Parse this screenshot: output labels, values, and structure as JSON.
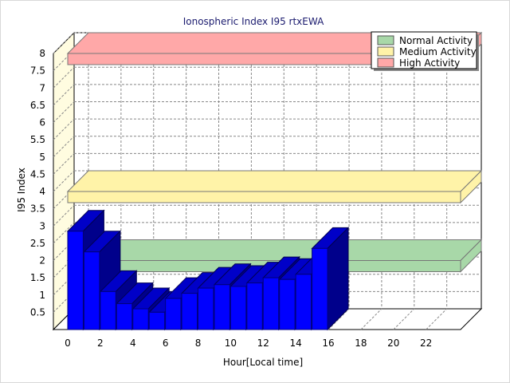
{
  "chart_data": {
    "type": "bar",
    "title": "Ionospheric Index I95 rtxEWA",
    "xlabel": "Hour[Local time]",
    "ylabel": "I95 Index",
    "x": [
      0,
      1,
      2,
      3,
      4,
      5,
      6,
      7,
      8,
      9,
      10,
      11,
      12,
      13,
      14,
      15
    ],
    "values": [
      2.85,
      2.25,
      1.1,
      0.75,
      0.6,
      0.5,
      0.9,
      1.05,
      1.2,
      1.3,
      1.25,
      1.35,
      1.5,
      1.45,
      1.6,
      2.35
    ],
    "xlim": [
      0,
      25
    ],
    "ylim": [
      0,
      8
    ],
    "xticks": [
      "0",
      "2",
      "4",
      "6",
      "8",
      "10",
      "12",
      "14",
      "16",
      "18",
      "20",
      "22"
    ],
    "yticks": [
      "0.5",
      "1",
      "1.5",
      "2",
      "2.5",
      "3",
      "3.5",
      "4",
      "4.5",
      "5",
      "5.5",
      "6",
      "6.5",
      "7",
      "7.5",
      "8"
    ],
    "bar_color": "#0000ff",
    "grid": true,
    "legend_position": "top-right",
    "bands": [
      {
        "name": "Normal Activity",
        "value": 2,
        "color": "#a8d8a8"
      },
      {
        "name": "Medium Activity",
        "value": 4,
        "color": "#fff3a8"
      },
      {
        "name": "High Activity",
        "value": 8,
        "color": "#ffa8a8"
      }
    ]
  }
}
